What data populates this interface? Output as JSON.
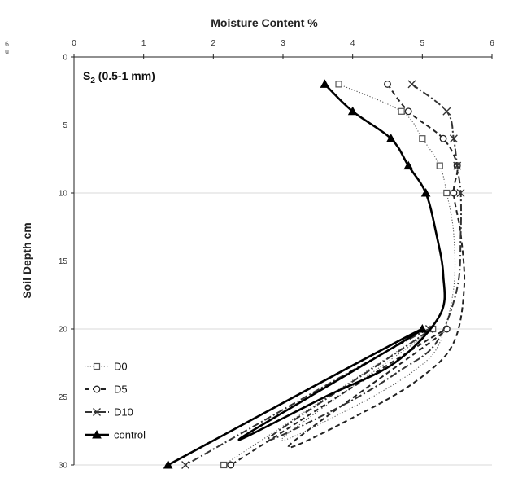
{
  "chart_data": {
    "type": "line",
    "panel_label": {
      "main": "S",
      "sub": "2",
      "rest": " (0.5-1 mm)"
    },
    "xlabel": "Moisture Content %",
    "ylabel": "Soil Depth cm",
    "xlim": [
      0,
      6
    ],
    "ylim": [
      0,
      30
    ],
    "x_ticks": [
      "0",
      "1",
      "2",
      "3",
      "4",
      "5",
      "6"
    ],
    "y_ticks": [
      "0",
      "5",
      "10",
      "15",
      "20",
      "25",
      "30"
    ],
    "y_inverted": true,
    "x_axis_position": "top",
    "grid": "horizontal",
    "legend_position": "bottom-left",
    "series": [
      {
        "name": "D0",
        "style": "dotted",
        "marker": "square",
        "color": "#555555",
        "points": [
          [
            3.8,
            2
          ],
          [
            4.7,
            4
          ],
          [
            5.0,
            6
          ],
          [
            5.25,
            8
          ],
          [
            5.35,
            10
          ],
          [
            5.15,
            20
          ],
          [
            2.15,
            30
          ]
        ],
        "curve": [
          [
            5.45,
            13
          ],
          [
            5.45,
            17
          ],
          [
            5.25,
            21
          ],
          [
            4.9,
            23
          ],
          [
            4.1,
            25.5
          ],
          [
            3.0,
            28
          ]
        ]
      },
      {
        "name": "D5",
        "style": "dashed",
        "marker": "circle",
        "color": "#222222",
        "points": [
          [
            4.5,
            2
          ],
          [
            4.8,
            4
          ],
          [
            5.3,
            6
          ],
          [
            5.5,
            8
          ],
          [
            5.45,
            10
          ],
          [
            5.35,
            20
          ],
          [
            2.25,
            30
          ]
        ],
        "curve": [
          [
            5.55,
            13
          ],
          [
            5.6,
            17
          ],
          [
            5.45,
            21
          ],
          [
            5.0,
            23.5
          ],
          [
            4.2,
            26
          ],
          [
            3.1,
            28.5
          ]
        ]
      },
      {
        "name": "D10",
        "style": "dashdot",
        "marker": "x",
        "color": "#333333",
        "points": [
          [
            4.85,
            2
          ],
          [
            5.35,
            4
          ],
          [
            5.45,
            6
          ],
          [
            5.5,
            8
          ],
          [
            5.55,
            10
          ],
          [
            5.1,
            20
          ],
          [
            1.6,
            30
          ]
        ],
        "curve": [
          [
            5.55,
            13
          ],
          [
            5.5,
            17
          ],
          [
            5.2,
            21
          ],
          [
            4.7,
            23
          ],
          [
            3.9,
            25.5
          ],
          [
            2.8,
            28
          ]
        ]
      },
      {
        "name": "control",
        "style": "solid",
        "marker": "triangle",
        "color": "#000000",
        "points": [
          [
            3.6,
            2
          ],
          [
            4.0,
            4
          ],
          [
            4.55,
            6
          ],
          [
            4.8,
            8
          ],
          [
            5.05,
            10
          ],
          [
            5.0,
            20
          ],
          [
            1.35,
            30
          ]
        ],
        "curve": [
          [
            5.2,
            13
          ],
          [
            5.3,
            16
          ],
          [
            5.25,
            19
          ],
          [
            4.6,
            22.5
          ],
          [
            3.6,
            25
          ],
          [
            2.4,
            28
          ]
        ]
      }
    ],
    "edge_fragments": [
      "6",
      "u"
    ]
  }
}
